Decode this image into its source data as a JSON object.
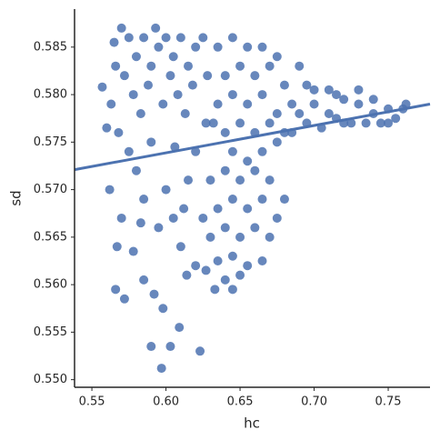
{
  "chart_data": {
    "type": "scatter",
    "x_label": "hc",
    "y_label": "sd",
    "color": "#4c72b0",
    "xlim": [
      0.5383,
      0.7782
    ],
    "ylim": [
      0.5492,
      0.589
    ],
    "xticks": [
      {
        "value": 0.55,
        "label": "0.55"
      },
      {
        "value": 0.6,
        "label": "0.60"
      },
      0.65,
      {
        "value": 0.7,
        "label": "0.70"
      },
      0.75
    ],
    "yticks": [
      {
        "value": 0.55,
        "label": "0.550"
      },
      0.555,
      {
        "value": 0.56,
        "label": "0.560"
      },
      0.565,
      {
        "value": 0.57,
        "label": "0.570"
      },
      0.575,
      {
        "value": 0.58,
        "label": "0.580"
      },
      0.585
    ],
    "x": [
      0.565,
      0.57,
      0.575,
      0.58,
      0.585,
      0.59,
      0.595,
      0.6,
      0.605,
      0.61,
      0.615,
      0.62,
      0.625,
      0.572,
      0.578,
      0.588,
      0.598,
      0.608,
      0.618,
      0.628,
      0.566,
      0.583,
      0.603,
      0.613,
      0.593,
      0.557,
      0.563,
      0.568,
      0.575,
      0.562,
      0.57,
      0.58,
      0.585,
      0.59,
      0.595,
      0.6,
      0.605,
      0.61,
      0.615,
      0.62,
      0.566,
      0.572,
      0.578,
      0.585,
      0.592,
      0.598,
      0.603,
      0.609,
      0.614,
      0.597,
      0.59,
      0.623,
      0.56,
      0.567,
      0.583,
      0.606,
      0.612,
      0.62,
      0.627,
      0.635,
      0.645,
      0.655,
      0.665,
      0.675,
      0.64,
      0.65,
      0.66,
      0.67,
      0.68,
      0.635,
      0.645,
      0.655,
      0.665,
      0.675,
      0.64,
      0.65,
      0.66,
      0.67,
      0.68,
      0.645,
      0.655,
      0.665,
      0.675,
      0.632,
      0.685,
      0.69,
      0.695,
      0.63,
      0.64,
      0.65,
      0.66,
      0.67,
      0.635,
      0.645,
      0.655,
      0.665,
      0.675,
      0.63,
      0.64,
      0.65,
      0.66,
      0.67,
      0.635,
      0.645,
      0.655,
      0.665,
      0.64,
      0.65,
      0.645,
      0.625,
      0.68,
      0.627,
      0.633,
      0.69,
      0.7,
      0.71,
      0.72,
      0.73,
      0.74,
      0.75,
      0.76,
      0.695,
      0.705,
      0.715,
      0.725,
      0.735,
      0.745,
      0.755,
      0.7,
      0.72,
      0.73,
      0.74,
      0.71,
      0.685,
      0.715,
      0.75,
      0.762
    ],
    "values": [
      0.5855,
      0.587,
      0.586,
      0.584,
      0.586,
      0.583,
      0.585,
      0.586,
      0.584,
      0.586,
      0.583,
      0.585,
      0.586,
      0.582,
      0.58,
      0.581,
      0.579,
      0.58,
      0.581,
      0.582,
      0.583,
      0.578,
      0.582,
      0.578,
      0.587,
      0.5808,
      0.579,
      0.576,
      0.574,
      0.57,
      0.567,
      0.572,
      0.569,
      0.575,
      0.566,
      0.57,
      0.567,
      0.564,
      0.571,
      0.562,
      0.5595,
      0.5585,
      0.5635,
      0.5605,
      0.559,
      0.5575,
      0.5535,
      0.5555,
      0.561,
      0.5512,
      0.5535,
      0.553,
      0.5765,
      0.564,
      0.5665,
      0.5745,
      0.568,
      0.574,
      0.577,
      0.585,
      0.586,
      0.585,
      0.585,
      0.584,
      0.582,
      0.583,
      0.582,
      0.583,
      0.581,
      0.579,
      0.58,
      0.579,
      0.58,
      0.578,
      0.576,
      0.577,
      0.576,
      0.577,
      0.576,
      0.574,
      0.573,
      0.574,
      0.575,
      0.577,
      0.579,
      0.583,
      0.581,
      0.571,
      0.572,
      0.571,
      0.572,
      0.571,
      0.568,
      0.569,
      0.568,
      0.569,
      0.567,
      0.565,
      0.566,
      0.565,
      0.566,
      0.565,
      0.5625,
      0.563,
      0.562,
      0.5625,
      0.5605,
      0.561,
      0.5595,
      0.567,
      0.569,
      0.5615,
      0.5595,
      0.578,
      0.579,
      0.578,
      0.5795,
      0.579,
      0.578,
      0.5785,
      0.5785,
      0.577,
      0.5765,
      0.5775,
      0.577,
      0.577,
      0.577,
      0.5775,
      0.5805,
      0.577,
      0.5805,
      0.5795,
      0.5805,
      0.576,
      0.58,
      0.577,
      0.579
    ],
    "fit": {
      "x": [
        0.5383,
        0.7782
      ],
      "y": [
        0.5721,
        0.579
      ]
    }
  }
}
